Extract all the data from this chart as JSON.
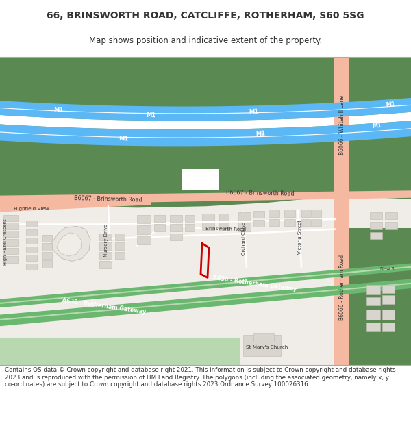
{
  "title_line1": "66, BRINSWORTH ROAD, CATCLIFFE, ROTHERHAM, S60 5SG",
  "title_line2": "Map shows position and indicative extent of the property.",
  "footer": "Contains OS data © Crown copyright and database right 2021. This information is subject to Crown copyright and database rights 2023 and is reproduced with the permission of HM Land Registry. The polygons (including the associated geometry, namely x, y co-ordinates) are subject to Crown copyright and database rights 2023 Ordnance Survey 100026316.",
  "bg_color": "#f8f6f2",
  "map_bg": "#f0ede8",
  "green_dark": "#5a8a52",
  "green_light": "#b8d8b0",
  "blue_motorway": "#5bb8f5",
  "blue_motorway_light": "#a0d8f8",
  "road_salmon": "#f5b8a0",
  "road_salmon_light": "#fad4c4",
  "road_green": "#6ab870",
  "road_green_light": "#a8d8a8",
  "building_color": "#d8d5ce",
  "building_edge": "#c0bbb4",
  "text_color": "#333333",
  "red_plot": "#cc0000",
  "white": "#ffffff"
}
